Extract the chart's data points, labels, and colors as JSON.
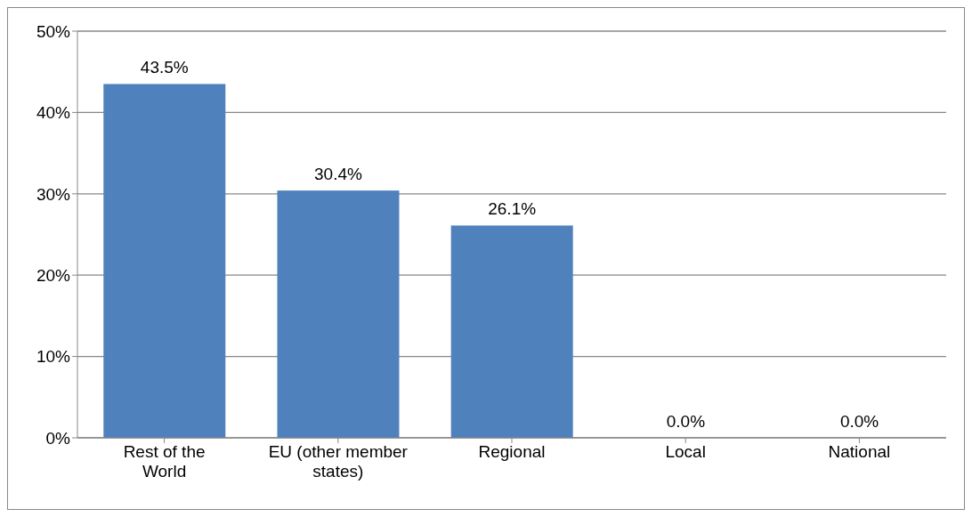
{
  "chart_data": {
    "type": "bar",
    "categories": [
      "Rest of the World",
      "EU (other member states)",
      "Regional",
      "Local",
      "National"
    ],
    "values": [
      43.5,
      30.4,
      26.1,
      0,
      0
    ],
    "color": "#4f81bd",
    "value_labels": [
      "43.5%",
      "30.4%",
      "26.1%",
      "0.0%",
      "0.0%"
    ],
    "ylim": [
      0,
      50
    ],
    "yticks": [
      {
        "value": 0,
        "label": "0%"
      },
      {
        "value": 10,
        "label": "10%"
      },
      {
        "value": 20,
        "label": "20%"
      },
      {
        "value": 30,
        "label": "30%"
      },
      {
        "value": 40,
        "label": "40%"
      },
      {
        "value": 50,
        "label": "50%"
      }
    ],
    "grid": "y"
  }
}
